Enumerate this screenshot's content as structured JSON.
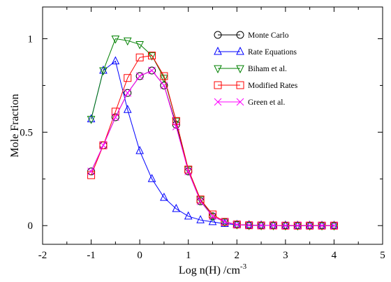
{
  "chart_data": {
    "type": "line",
    "title": "",
    "xlabel": "Log n(H) /cm",
    "xlabel_superscript": "-3",
    "ylabel": "Mole Fraction",
    "xlim": [
      -2,
      5
    ],
    "ylim": [
      -0.1,
      1.17
    ],
    "xticks": [
      -2,
      -1,
      0,
      1,
      2,
      3,
      4,
      5
    ],
    "xtick_labels": [
      "-2",
      "-1",
      "0",
      "1",
      "2",
      "3",
      "4",
      "5"
    ],
    "yticks": [
      0,
      0.5,
      1
    ],
    "ytick_labels": [
      "0",
      "0.5",
      "1"
    ],
    "grid": false,
    "legend_position": "top-right",
    "series": [
      {
        "name": "Monte Carlo",
        "color": "#000000",
        "marker": "circle",
        "x": [
          -1,
          -0.75,
          -0.5,
          -0.25,
          0,
          0.25,
          0.5,
          0.75,
          1,
          1.25,
          1.5,
          1.75,
          2,
          2.25,
          2.5,
          2.75,
          3,
          3.25,
          3.5,
          3.75,
          4
        ],
        "values": [
          0.29,
          0.43,
          0.58,
          0.71,
          0.8,
          0.83,
          0.75,
          0.54,
          0.29,
          0.13,
          0.05,
          0.02,
          0.005,
          0.002,
          0.001,
          0.001,
          0,
          0,
          0,
          0,
          0
        ]
      },
      {
        "name": "Rate Equations",
        "color": "#0000ff",
        "marker": "triangle-up",
        "x": [
          -1,
          -0.75,
          -0.5,
          -0.25,
          0,
          0.25,
          0.5,
          0.75,
          1,
          1.25,
          1.5,
          1.75,
          2,
          2.25,
          2.5,
          2.75,
          3,
          3.25,
          3.5,
          3.75,
          4
        ],
        "values": [
          0.57,
          0.83,
          0.88,
          0.62,
          0.4,
          0.25,
          0.15,
          0.09,
          0.05,
          0.03,
          0.02,
          0.01,
          0.005,
          0.003,
          0.002,
          0.001,
          0.001,
          0,
          0,
          0,
          0
        ]
      },
      {
        "name": "Biham et al.",
        "color": "#008000",
        "marker": "triangle-down",
        "x": [
          -1,
          -0.75,
          -0.5,
          -0.25,
          0,
          0.25,
          0.5,
          0.75,
          1,
          1.25,
          1.5,
          1.75,
          2,
          2.25,
          2.5,
          2.75,
          3,
          3.25,
          3.5,
          3.75,
          4
        ],
        "values": [
          0.57,
          0.83,
          1.0,
          0.99,
          0.97,
          0.91,
          0.79,
          0.56,
          0.3,
          0.14,
          0.05,
          0.02,
          0.006,
          0.002,
          0.001,
          0.001,
          0,
          0,
          0,
          0,
          0
        ]
      },
      {
        "name": "Modified Rates",
        "color": "#ff0000",
        "marker": "square",
        "x": [
          -1,
          -0.75,
          -0.5,
          -0.25,
          0,
          0.25,
          0.5,
          0.75,
          1,
          1.25,
          1.5,
          1.75,
          2,
          2.25,
          2.5,
          2.75,
          3,
          3.25,
          3.5,
          3.75,
          4
        ],
        "values": [
          0.27,
          0.43,
          0.61,
          0.79,
          0.9,
          0.91,
          0.8,
          0.56,
          0.3,
          0.14,
          0.06,
          0.02,
          0.006,
          0.002,
          0.001,
          0.001,
          0,
          0,
          0,
          0,
          0
        ]
      },
      {
        "name": "Green et al.",
        "color": "#ff00ff",
        "marker": "x",
        "x": [
          -1,
          -0.75,
          -0.5,
          -0.25,
          0,
          0.25,
          0.5,
          0.75,
          1,
          1.25,
          1.5,
          1.75,
          2,
          2.25,
          2.5,
          2.75,
          3,
          3.25,
          3.5,
          3.75,
          4
        ],
        "values": [
          0.29,
          0.43,
          0.58,
          0.71,
          0.8,
          0.83,
          0.75,
          0.53,
          0.29,
          0.13,
          0.05,
          0.02,
          0.005,
          0.002,
          0.001,
          0.001,
          0,
          0,
          0,
          0,
          0
        ]
      }
    ]
  }
}
